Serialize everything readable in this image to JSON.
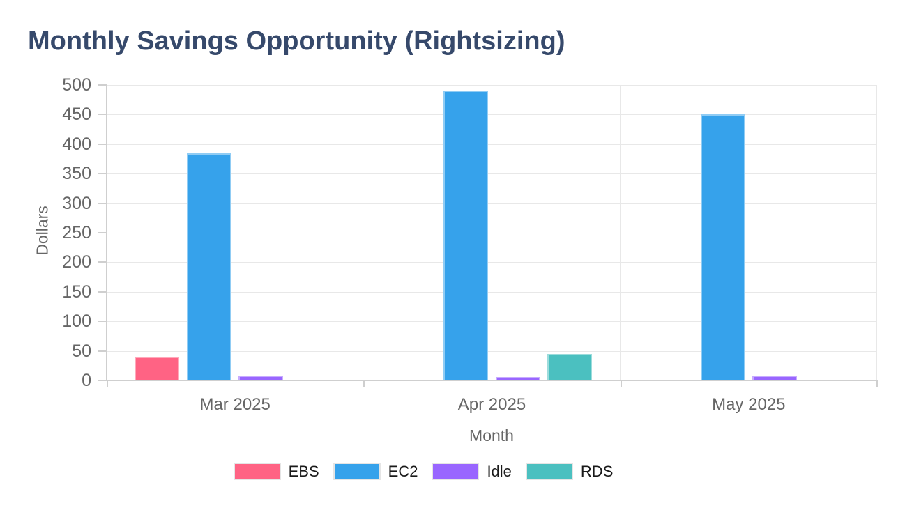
{
  "title": "Monthly Savings Opportunity (Rightsizing)",
  "chart_data": {
    "type": "bar",
    "title": "Monthly Savings Opportunity (Rightsizing)",
    "categories": [
      "Mar 2025",
      "Apr 2025",
      "May 2025"
    ],
    "series": [
      {
        "name": "EBS",
        "color": "#FF6384",
        "values": [
          40,
          0,
          0
        ]
      },
      {
        "name": "EC2",
        "color": "#36A2EB",
        "values": [
          385,
          490,
          450
        ]
      },
      {
        "name": "Idle",
        "color": "#9966FF",
        "values": [
          8,
          6,
          8
        ]
      },
      {
        "name": "RDS",
        "color": "#4BC0C0",
        "values": [
          0,
          45,
          0
        ]
      }
    ],
    "xlabel": "Month",
    "ylabel": "Dollars",
    "ylim": [
      0,
      500
    ],
    "yticks": [
      0,
      50,
      100,
      150,
      200,
      250,
      300,
      350,
      400,
      450,
      500
    ],
    "grid": true,
    "legend_position": "bottom"
  },
  "theme": {
    "background": "#FFFFFF",
    "title_color": "#36496B",
    "tick_text_color": "#666666",
    "axis_name_color": "#666666",
    "legend_text_color": "#1A1A1A",
    "gridline_color": "#E8E8E8",
    "axis_line_color": "#CFCFCF"
  }
}
